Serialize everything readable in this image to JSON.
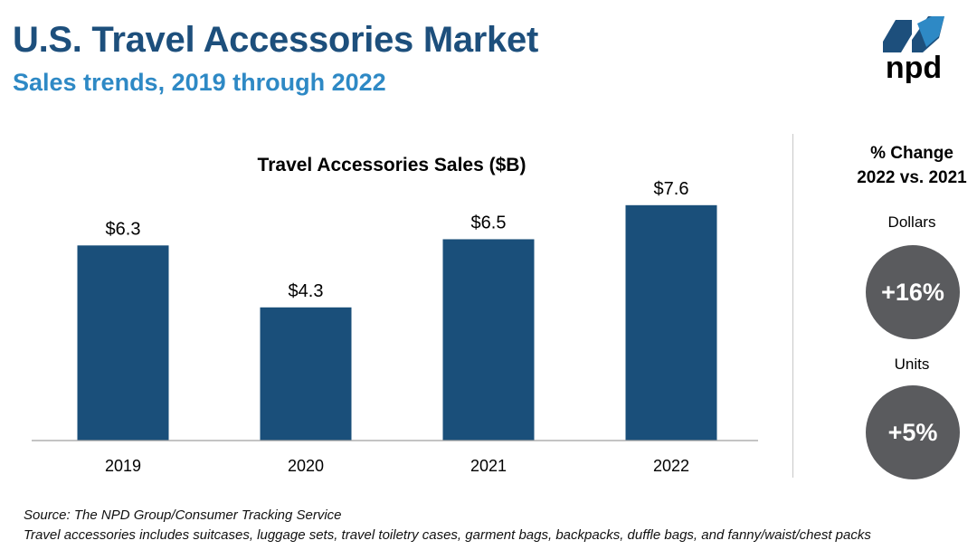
{
  "header": {
    "title": "U.S. Travel Accessories Market",
    "subtitle": "Sales trends, 2019 through 2022"
  },
  "logo": {
    "text": "npd",
    "colors": {
      "dark": "#1d4f7c",
      "light": "#2e89c5"
    }
  },
  "chart_data": {
    "type": "bar",
    "title": "Travel Accessories Sales ($B)",
    "categories": [
      "2019",
      "2020",
      "2021",
      "2022"
    ],
    "values": [
      6.3,
      4.3,
      6.5,
      7.6
    ],
    "value_labels": [
      "$6.3",
      "$4.3",
      "$6.5",
      "$7.6"
    ],
    "ylim": [
      0,
      8.5
    ],
    "grid": false,
    "bar_color": "#1a4f7a"
  },
  "change_panel": {
    "heading_line1": "% Change",
    "heading_line2": "2022 vs. 2021",
    "dollars_label": "Dollars",
    "dollars_value": "+16%",
    "units_label": "Units",
    "units_value": "+5%",
    "circle_color": "#5a5b5e"
  },
  "footnotes": {
    "source": "Source: The NPD Group/Consumer Tracking Service",
    "definition": "Travel accessories includes suitcases, luggage sets, travel toiletry cases, garment bags, backpacks, duffle bags, and fanny/waist/chest packs"
  }
}
